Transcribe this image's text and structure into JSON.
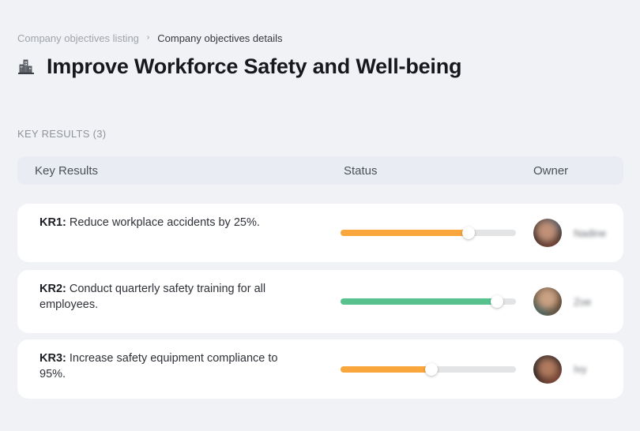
{
  "breadcrumb": {
    "separator": "›",
    "items": [
      {
        "label": "Company objectives listing"
      },
      {
        "label": "Company objectives details"
      }
    ]
  },
  "page": {
    "title": "Improve Workforce Safety and Well-being",
    "title_icon": "city-buildings-icon"
  },
  "section": {
    "label": "KEY RESULTS (3)"
  },
  "table": {
    "headers": [
      "Key Results",
      "Status",
      "Owner"
    ],
    "rows": [
      {
        "kr_label": "KR1:",
        "kr_text": "Reduce workplace accidents by 25%.",
        "progress_percent": 73,
        "progress_color": "#F9A63C",
        "owner_name": "Nadine"
      },
      {
        "kr_label": "KR2:",
        "kr_text": "Conduct quarterly safety training for all employees.",
        "progress_percent": 89,
        "progress_color": "#57C28E",
        "owner_name": "Zoe"
      },
      {
        "kr_label": "KR3:",
        "kr_text": "Increase safety equipment compliance to 95%.",
        "progress_percent": 52,
        "progress_color": "#F9A63C",
        "owner_name": "Ivy"
      }
    ]
  },
  "colors": {
    "page_background": "#F1F2F5",
    "header_row_background": "#E9EDF3",
    "card_background": "#FFFFFF",
    "progress_track": "#E3E4E6",
    "progress_orange": "#F9A63C",
    "progress_green": "#57C28E"
  }
}
